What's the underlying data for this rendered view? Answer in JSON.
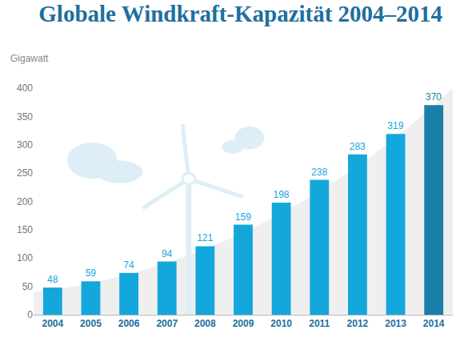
{
  "chart_data": {
    "type": "bar",
    "title": "Globale Windkraft-Kapazität 2004–2014",
    "y_label": "Gigawatt",
    "categories": [
      "2004",
      "2005",
      "2006",
      "2007",
      "2008",
      "2009",
      "2010",
      "2011",
      "2012",
      "2013",
      "2014"
    ],
    "values": [
      48,
      59,
      74,
      94,
      121,
      159,
      198,
      238,
      283,
      319,
      370
    ],
    "colors": [
      "#14a7dc",
      "#14a7dc",
      "#14a7dc",
      "#14a7dc",
      "#14a7dc",
      "#14a7dc",
      "#14a7dc",
      "#14a7dc",
      "#14a7dc",
      "#14a7dc",
      "#1b7fa8"
    ],
    "ylim": [
      0,
      400
    ],
    "yticks": [
      0,
      50,
      100,
      150,
      200,
      250,
      300,
      350,
      400
    ],
    "grid": false,
    "data_labels": true
  }
}
